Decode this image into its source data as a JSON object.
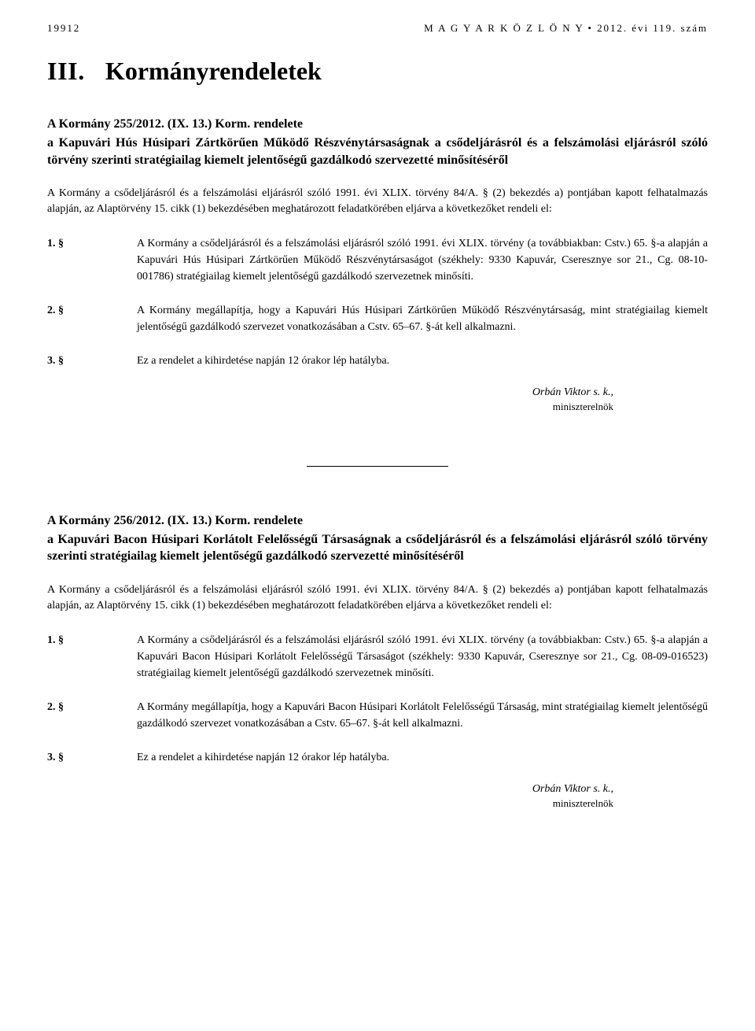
{
  "header": {
    "page_number": "19912",
    "publication": "M A G Y A R   K Ö Z L Ö N Y • 2012. évi 119. szám"
  },
  "section": {
    "number": "III.",
    "name": "Kormányrendeletek"
  },
  "decree1": {
    "title_line1": "A Kormány 255/2012. (IX. 13.) Korm. rendelete",
    "title_rest": "a Kapuvári Hús Húsipari Zártkörűen Működő Részvénytársaságnak a csődeljárásról és a felszámolási eljárásról szóló törvény szerinti stratégiailag kiemelt jelentőségű gazdálkodó szervezetté minősítéséről",
    "preamble": "A Kormány a csődeljárásról és a felszámolási eljárásról szóló 1991. évi XLIX. törvény 84/A. § (2) bekezdés a) pontjában kapott felhatalmazás alapján, az Alaptörvény 15. cikk (1) bekezdésében meghatározott feladatkörében eljárva a következőket rendeli el:",
    "paras": [
      {
        "num": "1. §",
        "text": "A Kormány a csődeljárásról és a felszámolási eljárásról szóló 1991. évi XLIX. törvény (a továbbiakban: Cstv.) 65. §-a alapján a Kapuvári Hús Húsipari Zártkörűen Működő Részvénytársaságot (székhely: 9330 Kapuvár, Cseresznye sor 21., Cg. 08-10-001786) stratégiailag kiemelt jelentőségű gazdálkodó szervezetnek minősíti."
      },
      {
        "num": "2. §",
        "text": "A Kormány megállapítja, hogy a Kapuvári Hús Húsipari Zártkörűen Működő Részvénytársaság, mint stratégiailag kiemelt jelentőségű gazdálkodó szervezet vonatkozásában a Cstv. 65–67. §-át kell alkalmazni."
      },
      {
        "num": "3. §",
        "text": "Ez a rendelet a kihirdetése napján 12 órakor lép hatályba."
      }
    ],
    "signature_name": "Orbán Viktor s. k.,",
    "signature_title": "miniszterelnök"
  },
  "decree2": {
    "title_line1": "A Kormány 256/2012. (IX. 13.) Korm. rendelete",
    "title_rest": "a Kapuvári Bacon Húsipari Korlátolt Felelősségű Társaságnak a csődeljárásról és a felszámolási eljárásról szóló törvény szerinti stratégiailag kiemelt jelentőségű gazdálkodó szervezetté minősítéséről",
    "preamble": "A Kormány a csődeljárásról és a felszámolási eljárásról szóló 1991. évi XLIX. törvény 84/A. § (2) bekezdés a) pontjában kapott felhatalmazás alapján, az Alaptörvény 15. cikk (1) bekezdésében meghatározott feladatkörében eljárva a következőket rendeli el:",
    "paras": [
      {
        "num": "1. §",
        "text": "A Kormány a csődeljárásról és a felszámolási eljárásról szóló 1991. évi XLIX. törvény (a továbbiakban: Cstv.) 65. §-a alapján a Kapuvári Bacon Húsipari Korlátolt Felelősségű Társaságot (székhely: 9330 Kapuvár, Cseresznye sor 21., Cg. 08-09-016523) stratégiailag kiemelt jelentőségű gazdálkodó szervezetnek minősíti."
      },
      {
        "num": "2. §",
        "text": "A Kormány megállapítja, hogy a Kapuvári Bacon Húsipari Korlátolt Felelősségű Társaság, mint stratégiailag kiemelt jelentőségű gazdálkodó szervezet vonatkozásában a Cstv. 65–67. §-át kell alkalmazni."
      },
      {
        "num": "3. §",
        "text": "Ez a rendelet a kihirdetése napján 12 órakor lép hatályba."
      }
    ],
    "signature_name": "Orbán Viktor s. k.,",
    "signature_title": "miniszterelnök"
  }
}
